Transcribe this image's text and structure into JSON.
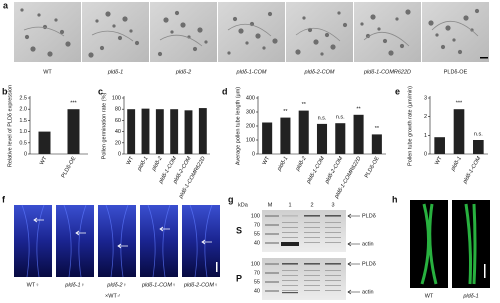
{
  "panel_labels": [
    "a",
    "b",
    "c",
    "d",
    "e",
    "f",
    "g",
    "h"
  ],
  "figure_a": {
    "labels": [
      "WT",
      "pldδ-1",
      "pldδ-2",
      "pldδ-1-COM",
      "pldδ-2-COM",
      "pldδ-1-COMR622D",
      "PLDδ-OE"
    ]
  },
  "chart_data": [
    {
      "type": "bar",
      "y_label": "Relative level of PLDδ expression",
      "categories": [
        "WT",
        "PLDδ-OE"
      ],
      "values": [
        1.0,
        2.0
      ],
      "annotations": [
        null,
        "***"
      ],
      "color": "#222222",
      "ylim": [
        0,
        2.5
      ],
      "yticks": [
        0,
        {
          "value": 0.5,
          "label": "0.5"
        },
        {
          "value": 1,
          "label": "1.0"
        },
        {
          "value": 1.5,
          "label": "1.5"
        },
        {
          "value": 2,
          "label": "2.0"
        },
        {
          "value": 2.5,
          "label": "2.5"
        }
      ]
    },
    {
      "type": "bar",
      "y_label": "Pollen germination rate (%)",
      "categories": [
        "WT",
        "pldδ-1",
        "pldδ-2",
        "pldδ-1-COM",
        "pldδ-2-COM",
        "pldδ-1-COMR622D"
      ],
      "values": [
        80,
        81,
        80,
        80,
        78,
        82
      ],
      "color": "#222222",
      "ylim": [
        0,
        100
      ],
      "yticks": [
        0,
        20,
        40,
        60,
        80,
        100
      ]
    },
    {
      "type": "bar",
      "y_label": "Average pollen tube length (μm)",
      "categories": [
        "WT",
        "pldδ-1",
        "pldδ-2",
        "pldδ-1-COM",
        "pldδ-2-COM",
        "pldδ-1-COMR622D",
        "PLDδ-OE"
      ],
      "values": [
        225,
        260,
        310,
        215,
        220,
        280,
        140
      ],
      "annotations": [
        null,
        "**",
        "**",
        "n.s.",
        "n.s.",
        "**",
        "**"
      ],
      "color": "#222222",
      "ylim": [
        0,
        400
      ],
      "yticks": [
        0,
        100,
        200,
        300,
        400
      ]
    },
    {
      "type": "bar",
      "y_label": "Pollen tube growth rate (μm/min)",
      "categories": [
        "WT",
        "pldδ-1",
        "pldδ-1-COM"
      ],
      "values": [
        0.9,
        2.4,
        0.75
      ],
      "annotations": [
        null,
        "***",
        "n.s."
      ],
      "color": "#222222",
      "ylim": [
        0,
        3
      ],
      "yticks": [
        0,
        1,
        2,
        3
      ]
    }
  ],
  "figure_f": {
    "labels": [
      "WT♀",
      "pldδ-1♀",
      "pldδ-2♀",
      "pldδ-1-COM♀",
      "pldδ-2-COM♀"
    ],
    "cross": "×WT♂"
  },
  "figure_g": {
    "unit": "kDa",
    "lanes": [
      "M",
      "1",
      "2",
      "3"
    ],
    "fractions": [
      "S",
      "P"
    ],
    "markers": [
      "100",
      "70",
      "55",
      "40"
    ],
    "bands": [
      "PLDδ",
      "actin"
    ]
  },
  "figure_h": {
    "labels": [
      "WT",
      "pldδ-1"
    ]
  }
}
